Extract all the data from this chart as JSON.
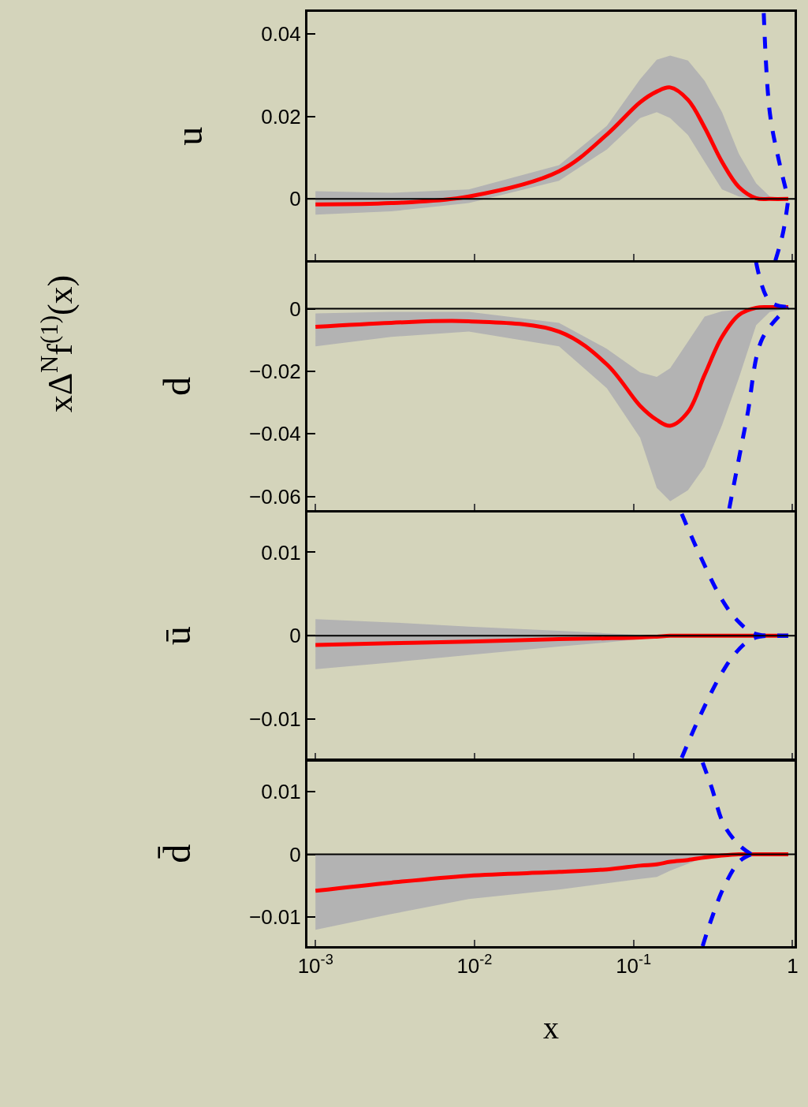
{
  "chart_data": [
    {
      "type": "line",
      "ylabel": "u",
      "annotations": [
        "xΔ$^{N}$f$^{(1)}$(x)"
      ],
      "tick_labels": "y",
      "grid": false,
      "line_style": "solid",
      "xlim": [
        0.00089,
        1.03
      ],
      "xticks": [
        {
          "value": 0.001,
          "label": "10$^{-3}$"
        },
        {
          "value": 0.01,
          "label": "10$^{-2}$"
        },
        {
          "value": 0.1,
          "label": "10$^{-1}$"
        },
        {
          "value": 1,
          "label": "1"
        }
      ],
      "log": "x",
      "ylim": [
        -0.0149,
        0.0453
      ],
      "yticks": [
        0,
        0.02,
        0.04
      ],
      "ref_lines": [
        {
          "axis": "y",
          "value": 0,
          "color": "#000000"
        }
      ],
      "series": [
        {
          "color": "#ff0000",
          "x": [
            0.001,
            0.003,
            0.0092,
            0.034,
            0.068,
            0.11,
            0.14,
            0.17,
            0.22,
            0.28,
            0.36,
            0.46,
            0.59,
            0.72,
            0.94
          ],
          "values": [
            -0.0013,
            -0.001,
            0.0006,
            0.0067,
            0.0156,
            0.0234,
            0.026,
            0.027,
            0.024,
            0.0173,
            0.009,
            0.0029,
            0.0002,
            0,
            0
          ],
          "upper": [
            0.0019,
            0.0015,
            0.0023,
            0.0082,
            0.0177,
            0.029,
            0.0337,
            0.0347,
            0.0335,
            0.0286,
            0.021,
            0.0109,
            0.0038,
            0.0006,
            0
          ],
          "lower": [
            -0.0038,
            -0.003,
            -0.001,
            0.0044,
            0.012,
            0.0196,
            0.021,
            0.0196,
            0.0155,
            0.009,
            0.0023,
            0.0006,
            0,
            0,
            0
          ]
        },
        {
          "color": "#0000ff",
          "line_style": "dashed",
          "x": [
            0.659,
            0.721,
            0.824,
            0.94
          ],
          "values": [
            0.045,
            0.0206,
            0.009,
            0
          ]
        },
        {
          "color": "#0000ff",
          "line_style": "dashed",
          "x": [
            0.78,
            0.871,
            0.94
          ],
          "values": [
            -0.0149,
            -0.0082,
            0
          ]
        }
      ]
    },
    {
      "type": "line",
      "ylabel": "d",
      "tick_labels": "y",
      "grid": false,
      "line_style": "solid",
      "xlim": [
        0.00089,
        1.03
      ],
      "xticks": [
        {
          "value": 0.001,
          "label": "10$^{-3}$"
        },
        {
          "value": 0.01,
          "label": "10$^{-2}$"
        },
        {
          "value": 0.1,
          "label": "10$^{-1}$"
        },
        {
          "value": 1,
          "label": "1"
        }
      ],
      "log": "x",
      "ylim": [
        -0.0644,
        0.0148
      ],
      "yticks": [
        {
          "value": -0.06,
          "label": "−0.06"
        },
        {
          "value": -0.04,
          "label": "−0.04"
        },
        {
          "value": -0.02,
          "label": "−0.02"
        },
        0
      ],
      "ref_lines": [
        {
          "axis": "y",
          "value": 0,
          "color": "#000000"
        }
      ],
      "series": [
        {
          "color": "#ff0000",
          "x": [
            0.001,
            0.003,
            0.0092,
            0.034,
            0.068,
            0.11,
            0.14,
            0.17,
            0.22,
            0.28,
            0.36,
            0.46,
            0.59,
            0.72,
            0.94
          ],
          "values": [
            -0.0058,
            -0.0045,
            -0.004,
            -0.0073,
            -0.0178,
            -0.031,
            -0.0355,
            -0.0374,
            -0.033,
            -0.0211,
            -0.009,
            -0.002,
            0.0003,
            0.0005,
            0.0005
          ],
          "upper": [
            -0.0015,
            -0.001,
            -0.001,
            -0.0045,
            -0.0128,
            -0.0203,
            -0.0218,
            -0.019,
            -0.0105,
            -0.0025,
            -0.0008,
            -0.0003,
            0,
            0.0003,
            0.0005
          ],
          "lower": [
            -0.012,
            -0.009,
            -0.0073,
            -0.012,
            -0.0254,
            -0.0412,
            -0.0572,
            -0.0615,
            -0.058,
            -0.0505,
            -0.0372,
            -0.0221,
            -0.0053,
            -0.001,
            0
          ]
        },
        {
          "color": "#0000ff",
          "line_style": "dashed",
          "x": [
            0.59,
            0.72,
            0.94
          ],
          "values": [
            0.0148,
            0.0023,
            0.0005
          ]
        },
        {
          "color": "#0000ff",
          "line_style": "dashed",
          "x": [
            0.4,
            0.517,
            0.646,
            0.94
          ],
          "values": [
            -0.0638,
            -0.0346,
            -0.0095,
            0.0005
          ]
        }
      ]
    },
    {
      "type": "line",
      "ylabel": "ū",
      "tick_labels": "y",
      "grid": false,
      "line_style": "solid",
      "xlim": [
        0.00089,
        1.03
      ],
      "xticks": [
        {
          "value": 0.001,
          "label": "10$^{-3}$"
        },
        {
          "value": 0.01,
          "label": "10$^{-2}$"
        },
        {
          "value": 0.1,
          "label": "10$^{-1}$"
        },
        {
          "value": 1,
          "label": "1"
        }
      ],
      "log": "x",
      "ylim": [
        -0.0148,
        0.0148
      ],
      "yticks": [
        {
          "value": -0.01,
          "label": "−0.01"
        },
        0,
        0.01
      ],
      "ref_lines": [
        {
          "axis": "y",
          "value": 0,
          "color": "#000000"
        }
      ],
      "series": [
        {
          "color": "#ff0000",
          "x": [
            0.001,
            0.003,
            0.0092,
            0.034,
            0.068,
            0.11,
            0.14,
            0.17,
            0.22,
            0.28,
            0.36,
            0.46,
            0.59,
            0.72,
            0.94
          ],
          "values": [
            -0.0011,
            -0.0009,
            -0.0007,
            -0.0004,
            -0.0003,
            -0.0002,
            -0.0001,
            0,
            0,
            0,
            0,
            0,
            0,
            0,
            0
          ],
          "upper": [
            0.002,
            0.0016,
            0.0011,
            0.0006,
            0.0003,
            0.0001,
            0.0001,
            0,
            0,
            0,
            0,
            0,
            0,
            0,
            0
          ],
          "lower": [
            -0.004,
            -0.0032,
            -0.0023,
            -0.0013,
            -0.0008,
            -0.0004,
            -0.0002,
            0,
            0,
            0,
            0,
            0,
            0,
            0,
            0
          ]
        },
        {
          "color": "#0000ff",
          "line_style": "dashed",
          "x": [
            0.201,
            0.262,
            0.358,
            0.446,
            0.57,
            0.94
          ],
          "values": [
            0.0146,
            0.0096,
            0.0044,
            0.0019,
            0.0003,
            0
          ]
        },
        {
          "color": "#0000ff",
          "line_style": "dashed",
          "x": [
            0.201,
            0.262,
            0.358,
            0.446,
            0.57,
            0.94
          ],
          "values": [
            -0.0146,
            -0.0096,
            -0.0045,
            -0.0019,
            -0.0003,
            0
          ]
        }
      ]
    },
    {
      "type": "line",
      "ylabel": "d̄",
      "xlabel": "x",
      "grid": false,
      "line_style": "solid",
      "xlim": [
        0.00089,
        1.03
      ],
      "xticks": [
        {
          "value": 0.001,
          "label": "10$^{-3}$"
        },
        {
          "value": 0.01,
          "label": "10$^{-2}$"
        },
        {
          "value": 0.1,
          "label": "10$^{-1}$"
        },
        {
          "value": 1,
          "label": "1"
        }
      ],
      "log": "x",
      "ylim": [
        -0.0146,
        0.0148
      ],
      "yticks": [
        {
          "value": -0.01,
          "label": "−0.01"
        },
        0,
        0.01
      ],
      "ref_lines": [
        {
          "axis": "y",
          "value": 0,
          "color": "#000000"
        }
      ],
      "series": [
        {
          "color": "#ff0000",
          "x": [
            0.001,
            0.003,
            0.0092,
            0.034,
            0.068,
            0.11,
            0.14,
            0.17,
            0.22,
            0.28,
            0.36,
            0.46,
            0.59,
            0.72,
            0.94
          ],
          "values": [
            -0.0058,
            -0.0045,
            -0.0034,
            -0.0028,
            -0.0024,
            -0.0018,
            -0.0016,
            -0.0012,
            -0.0009,
            -0.0005,
            -0.0002,
            0,
            0,
            0,
            0
          ],
          "upper": [
            0,
            0,
            0,
            0,
            0,
            0,
            0,
            0,
            0,
            0,
            0,
            0,
            0,
            0,
            0
          ],
          "lower": [
            -0.012,
            -0.0095,
            -0.0071,
            -0.0056,
            -0.0046,
            -0.0039,
            -0.0036,
            -0.0026,
            -0.0015,
            -0.0005,
            0,
            0,
            0,
            0,
            0
          ]
        },
        {
          "color": "#0000ff",
          "line_style": "dashed",
          "x": [
            0.272,
            0.31,
            0.37,
            0.464,
            0.55
          ],
          "values": [
            0.0146,
            0.0106,
            0.0047,
            0.0014,
            0
          ]
        },
        {
          "color": "#0000ff",
          "line_style": "dashed",
          "x": [
            0.272,
            0.31,
            0.37,
            0.464,
            0.55
          ],
          "values": [
            -0.0146,
            -0.0102,
            -0.0052,
            -0.0011,
            0
          ]
        }
      ]
    }
  ]
}
